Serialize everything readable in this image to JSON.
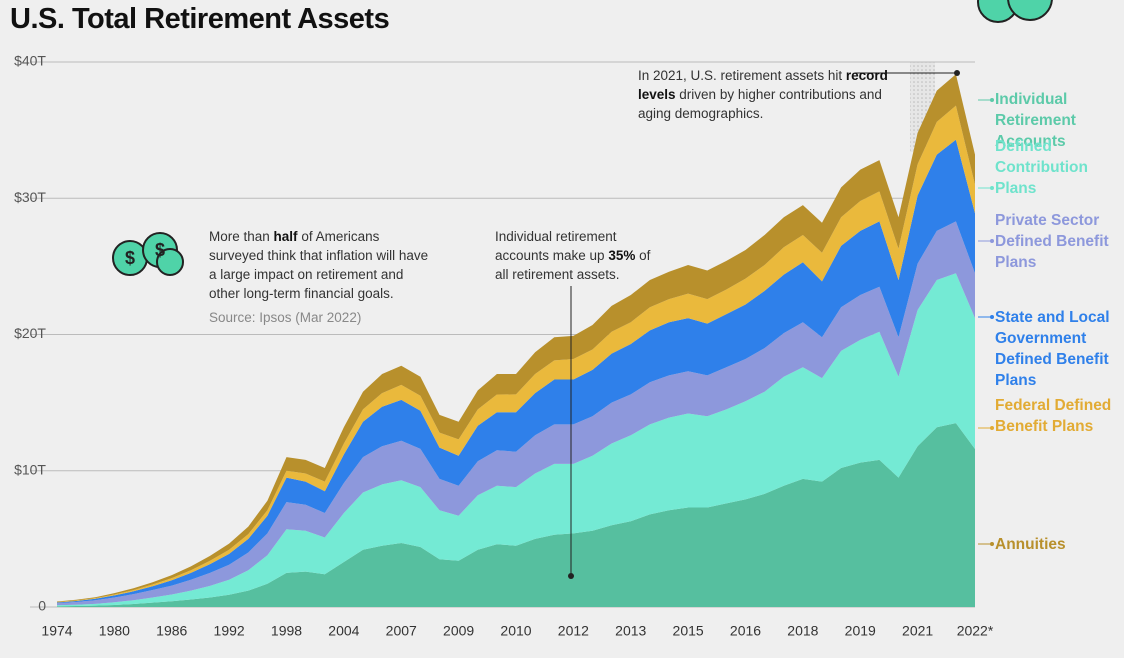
{
  "chart_data": {
    "type": "stacked-area",
    "title": "U.S. Total Retirement Assets",
    "categories": [
      "1974",
      null,
      null,
      "1980",
      null,
      null,
      "1986",
      null,
      null,
      "1992",
      null,
      null,
      "1998",
      null,
      null,
      "2004",
      null,
      null,
      "2007",
      null,
      null,
      "2009",
      null,
      null,
      "2010",
      null,
      null,
      "2012",
      null,
      null,
      "2013",
      null,
      null,
      "2015",
      null,
      null,
      "2016",
      null,
      null,
      "2018",
      null,
      null,
      "2019",
      null,
      null,
      "2021",
      null,
      null,
      "2022*"
    ],
    "series": [
      {
        "name": "Individual Retirement Accounts",
        "color": "#56bf9f",
        "label_color": "#5ccaa9",
        "values": [
          0.05,
          0.07,
          0.1,
          0.15,
          0.22,
          0.32,
          0.42,
          0.55,
          0.7,
          0.9,
          1.2,
          1.7,
          2.5,
          2.6,
          2.4,
          3.3,
          4.2,
          4.5,
          4.7,
          4.4,
          3.5,
          3.4,
          4.2,
          4.6,
          4.5,
          5.0,
          5.3,
          5.4,
          5.6,
          6.0,
          6.3,
          6.8,
          7.1,
          7.3,
          7.3,
          7.6,
          7.9,
          8.3,
          8.9,
          9.4,
          9.2,
          10.2,
          10.6,
          10.8,
          9.5,
          11.8,
          13.2,
          13.5,
          11.6
        ]
      },
      {
        "name": "Defined Contribution Plans",
        "color": "#74ead4",
        "label_color": "#6fe3cc",
        "values": [
          0.08,
          0.1,
          0.13,
          0.2,
          0.28,
          0.38,
          0.5,
          0.65,
          0.85,
          1.1,
          1.5,
          2.1,
          3.2,
          3.0,
          2.7,
          3.6,
          4.2,
          4.5,
          4.6,
          4.4,
          3.6,
          3.3,
          4.0,
          4.3,
          4.3,
          4.8,
          5.2,
          5.1,
          5.5,
          6.0,
          6.3,
          6.6,
          6.8,
          6.9,
          6.7,
          6.9,
          7.2,
          7.5,
          8.0,
          8.2,
          7.6,
          8.6,
          9.0,
          9.4,
          7.4,
          10.0,
          10.8,
          11.0,
          9.6
        ]
      },
      {
        "name": "Private Sector Defined Benefit Plans",
        "color": "#8d98dc",
        "label_color": "#8d98dc",
        "values": [
          0.15,
          0.2,
          0.27,
          0.35,
          0.45,
          0.55,
          0.65,
          0.8,
          0.95,
          1.1,
          1.3,
          1.6,
          2.0,
          1.9,
          1.8,
          2.2,
          2.6,
          2.8,
          2.9,
          2.8,
          2.3,
          2.2,
          2.5,
          2.6,
          2.6,
          2.8,
          2.9,
          2.9,
          2.9,
          3.0,
          3.0,
          3.1,
          3.1,
          3.1,
          3.0,
          3.1,
          3.1,
          3.2,
          3.2,
          3.3,
          3.0,
          3.2,
          3.3,
          3.3,
          2.9,
          3.4,
          3.6,
          3.8,
          3.3
        ]
      },
      {
        "name": "State and Local Government Defined Benefit Plans",
        "color": "#2f80ea",
        "label_color": "#2f80ea",
        "values": [
          0.05,
          0.07,
          0.1,
          0.15,
          0.2,
          0.28,
          0.4,
          0.5,
          0.65,
          0.8,
          1.0,
          1.3,
          1.8,
          1.7,
          1.6,
          2.1,
          2.6,
          2.9,
          3.0,
          2.8,
          2.3,
          2.2,
          2.6,
          2.8,
          2.9,
          3.1,
          3.3,
          3.3,
          3.4,
          3.6,
          3.7,
          3.8,
          3.9,
          3.9,
          3.8,
          3.9,
          4.0,
          4.2,
          4.3,
          4.4,
          4.1,
          4.5,
          4.7,
          4.8,
          4.2,
          5.0,
          5.6,
          6.0,
          4.4
        ]
      },
      {
        "name": "Federal Defined Benefit Plans",
        "color": "#eab93c",
        "label_color": "#e2ab34",
        "values": [
          0.03,
          0.04,
          0.05,
          0.07,
          0.09,
          0.12,
          0.15,
          0.2,
          0.25,
          0.3,
          0.35,
          0.4,
          0.5,
          0.6,
          0.7,
          0.8,
          0.9,
          1.0,
          1.1,
          1.1,
          1.1,
          1.2,
          1.2,
          1.3,
          1.3,
          1.4,
          1.4,
          1.5,
          1.5,
          1.6,
          1.6,
          1.7,
          1.7,
          1.8,
          1.8,
          1.8,
          1.9,
          1.9,
          2.0,
          2.0,
          2.1,
          2.1,
          2.2,
          2.2,
          2.3,
          2.3,
          2.4,
          2.5,
          2.1
        ]
      },
      {
        "name": "Annuities",
        "color": "#b8902c",
        "label_color": "#b8902c",
        "values": [
          0.04,
          0.05,
          0.07,
          0.1,
          0.13,
          0.17,
          0.22,
          0.28,
          0.35,
          0.45,
          0.55,
          0.7,
          1.0,
          1.0,
          1.0,
          1.2,
          1.3,
          1.4,
          1.4,
          1.4,
          1.3,
          1.3,
          1.4,
          1.5,
          1.5,
          1.6,
          1.7,
          1.7,
          1.8,
          1.9,
          2.0,
          2.0,
          2.0,
          2.1,
          2.1,
          2.1,
          2.1,
          2.2,
          2.2,
          2.2,
          2.2,
          2.2,
          2.3,
          2.3,
          2.3,
          2.3,
          2.3,
          2.3,
          2.2
        ]
      }
    ],
    "ylim": [
      0,
      40
    ],
    "yticks": [
      0,
      {
        "value": 10,
        "label": "$10T"
      },
      {
        "value": 20,
        "label": "$20T"
      },
      {
        "value": 30,
        "label": "$30T"
      },
      {
        "value": 40,
        "label": "$40T"
      }
    ],
    "grid": true,
    "legend": "right",
    "annotations": [
      {
        "parts": [
          {
            "text": "In 2021, U.S. retirement assets hit "
          },
          {
            "text": "record levels",
            "bold": true
          },
          {
            "text": " driven by higher contributions and aging demographics."
          }
        ]
      },
      {
        "parts": [
          {
            "text": "More than "
          },
          {
            "text": "half",
            "bold": true
          },
          {
            "text": " of Americans surveyed think that inflation will have a large impact on retirement and other long-term financial goals."
          }
        ],
        "source": "Source: Ipsos (Mar 2022)"
      },
      {
        "parts": [
          {
            "text": "Individual retirement accounts make up "
          },
          {
            "text": "35%",
            "bold": true
          },
          {
            "text": " of all retirement assets."
          }
        ]
      }
    ]
  }
}
